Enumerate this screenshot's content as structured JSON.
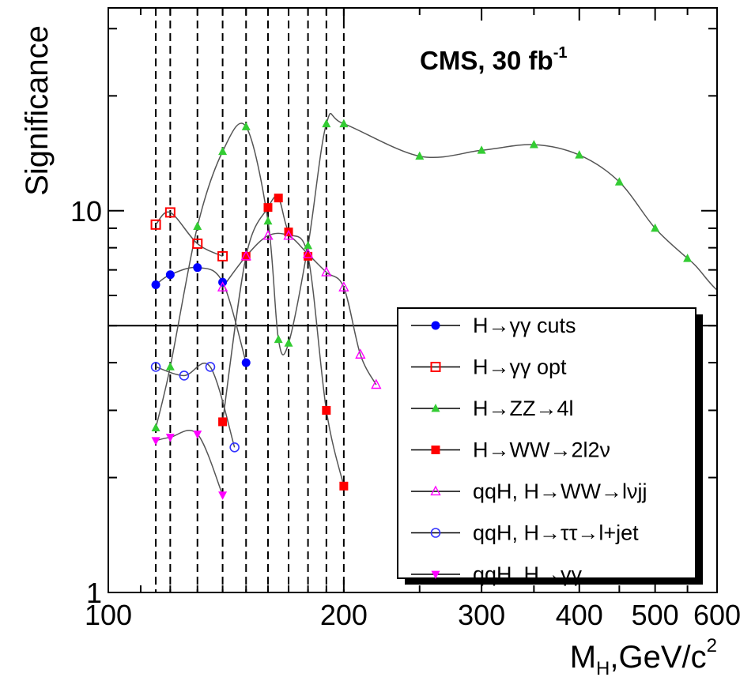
{
  "chart_data": {
    "type": "scatter",
    "title": "",
    "annotation": {
      "main": "CMS, 30 fb",
      "superscript": "-1"
    },
    "xlabel": {
      "main": "M",
      "sub": "H",
      "rest": ",GeV/c",
      "sup": "2"
    },
    "ylabel": "Significance",
    "x_scale": "log",
    "y_scale": "log",
    "xlim": [
      100,
      600
    ],
    "ylim": [
      1,
      34
    ],
    "x_tick_labels": [
      {
        "value": 100,
        "label": "100"
      },
      {
        "value": 200,
        "label": "200"
      },
      {
        "value": 300,
        "label": "300"
      },
      {
        "value": 400,
        "label": "400"
      },
      {
        "value": 500,
        "label": "500"
      },
      {
        "value": 600,
        "label": "600"
      }
    ],
    "y_tick_labels": [
      {
        "value": 1,
        "label": "1"
      },
      {
        "value": 10,
        "label": "10"
      }
    ],
    "y_reference_line": 5,
    "vertical_dashed_lines": [
      115,
      120,
      130,
      140,
      150,
      160,
      170,
      180,
      190,
      200
    ],
    "legend_position": "lower-right",
    "series": [
      {
        "name": "H→γγ cuts",
        "marker": "circle-filled",
        "color": "#0000ff",
        "x": [
          115,
          120,
          130,
          140,
          150
        ],
        "y": [
          6.4,
          6.8,
          7.1,
          6.5,
          4.0
        ]
      },
      {
        "name": "H→γγ opt",
        "marker": "square-open",
        "color": "#ff0000",
        "x": [
          115,
          120,
          130,
          140
        ],
        "y": [
          9.2,
          9.9,
          8.2,
          7.6
        ]
      },
      {
        "name": "H→ZZ→4l",
        "marker": "triangle-up-filled",
        "color": "#33cc33",
        "x": [
          115,
          120,
          130,
          140,
          150,
          160,
          165,
          170,
          180,
          190,
          200,
          250,
          300,
          350,
          400,
          450,
          500,
          550
        ],
        "y": [
          2.7,
          3.9,
          9.1,
          14.3,
          16.6,
          9.4,
          4.6,
          4.5,
          8.1,
          16.9,
          16.9,
          13.9,
          14.4,
          14.9,
          14.0,
          11.9,
          9.0,
          7.5
        ]
      },
      {
        "name": "H→WW→2l2ν",
        "marker": "square-filled",
        "color": "#ff0000",
        "x": [
          140,
          150,
          160,
          165,
          170,
          180,
          190,
          200
        ],
        "y": [
          2.8,
          7.6,
          10.2,
          10.8,
          8.8,
          7.6,
          3.0,
          1.9
        ]
      },
      {
        "name": "qqH, H→WW→lνjj",
        "marker": "triangle-up-open",
        "color": "#ff00ff",
        "x": [
          140,
          150,
          160,
          170,
          180,
          190,
          200,
          210,
          220
        ],
        "y": [
          6.3,
          7.6,
          8.6,
          8.6,
          7.7,
          6.9,
          6.3,
          4.2,
          3.5
        ]
      },
      {
        "name": "qqH, H→ττ→l+jet",
        "marker": "circle-open",
        "color": "#3333ff",
        "x": [
          115,
          125,
          135,
          145
        ],
        "y": [
          3.9,
          3.7,
          3.9,
          2.4
        ]
      },
      {
        "name": "qqH, H→γγ",
        "marker": "triangle-down-filled",
        "color": "#ff00ff",
        "x": [
          115,
          120,
          130,
          140
        ],
        "y": [
          2.5,
          2.55,
          2.6,
          1.8
        ]
      }
    ]
  }
}
